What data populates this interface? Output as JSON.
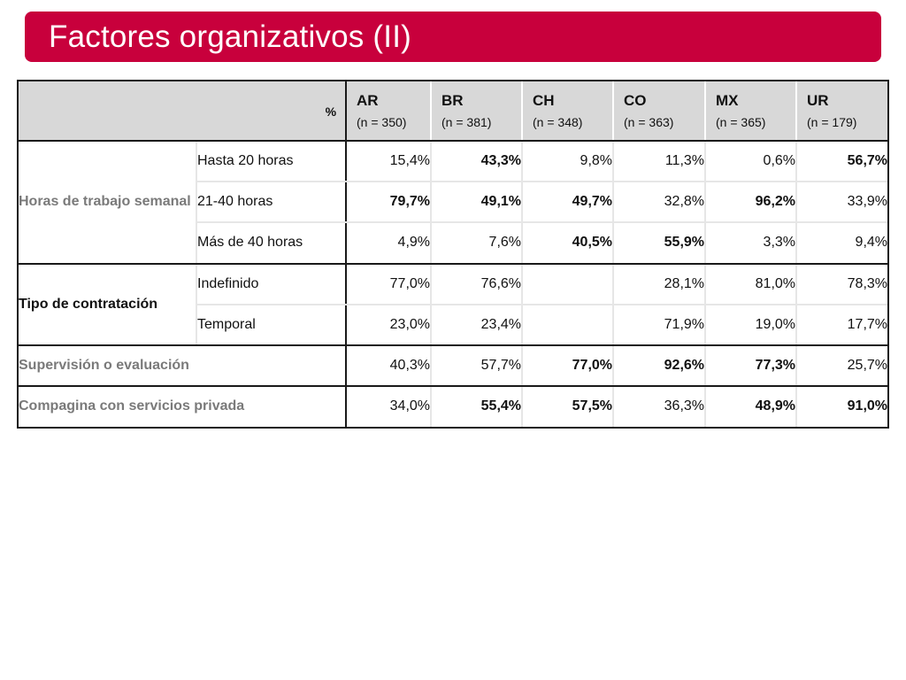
{
  "title": "Factores organizativos (II)",
  "header": {
    "percent_label": "%",
    "countries": [
      {
        "code": "AR",
        "n": "(n = 350)"
      },
      {
        "code": "BR",
        "n": "(n = 381)"
      },
      {
        "code": "CH",
        "n": "(n = 348)"
      },
      {
        "code": "CO",
        "n": "(n = 363)"
      },
      {
        "code": "MX",
        "n": "(n = 365)"
      },
      {
        "code": "UR",
        "n": "(n = 179)"
      }
    ]
  },
  "groups": {
    "horas": {
      "label": "Horas de trabajo semanal",
      "rows": [
        {
          "label": "Hasta 20 horas",
          "values": [
            "15,4%",
            "43,3%",
            "9,8%",
            "11,3%",
            "0,6%",
            "56,7%"
          ],
          "bold": [
            false,
            true,
            false,
            false,
            false,
            true
          ]
        },
        {
          "label": "21-40 horas",
          "values": [
            "79,7%",
            "49,1%",
            "49,7%",
            "32,8%",
            "96,2%",
            "33,9%"
          ],
          "bold": [
            true,
            true,
            true,
            false,
            true,
            false
          ]
        },
        {
          "label": "Más de 40 horas",
          "values": [
            "4,9%",
            "7,6%",
            "40,5%",
            "55,9%",
            "3,3%",
            "9,4%"
          ],
          "bold": [
            false,
            false,
            true,
            true,
            false,
            false
          ]
        }
      ]
    },
    "tipo": {
      "label": "Tipo de contratación",
      "rows": [
        {
          "label": "Indefinido",
          "values": [
            "77,0%",
            "76,6%",
            "",
            "28,1%",
            "81,0%",
            "78,3%"
          ],
          "bold": [
            false,
            false,
            false,
            false,
            false,
            false
          ]
        },
        {
          "label": "Temporal",
          "values": [
            "23,0%",
            "23,4%",
            "",
            "71,9%",
            "19,0%",
            "17,7%"
          ],
          "bold": [
            false,
            false,
            false,
            false,
            false,
            false
          ]
        }
      ]
    },
    "supervision": {
      "label": "Supervisión o evaluación",
      "values": [
        "40,3%",
        "57,7%",
        "77,0%",
        "92,6%",
        "77,3%",
        "25,7%"
      ],
      "bold": [
        false,
        false,
        true,
        true,
        true,
        false
      ]
    },
    "compagina": {
      "label": "Compagina con servicios privada",
      "values": [
        "34,0%",
        "55,4%",
        "57,5%",
        "36,3%",
        "48,9%",
        "91,0%"
      ],
      "bold": [
        false,
        true,
        true,
        false,
        true,
        true
      ]
    }
  },
  "colors": {
    "title_bar": "#c8003c",
    "header_bg": "#d8d8d8",
    "grey_label": "#7a7a7a"
  }
}
